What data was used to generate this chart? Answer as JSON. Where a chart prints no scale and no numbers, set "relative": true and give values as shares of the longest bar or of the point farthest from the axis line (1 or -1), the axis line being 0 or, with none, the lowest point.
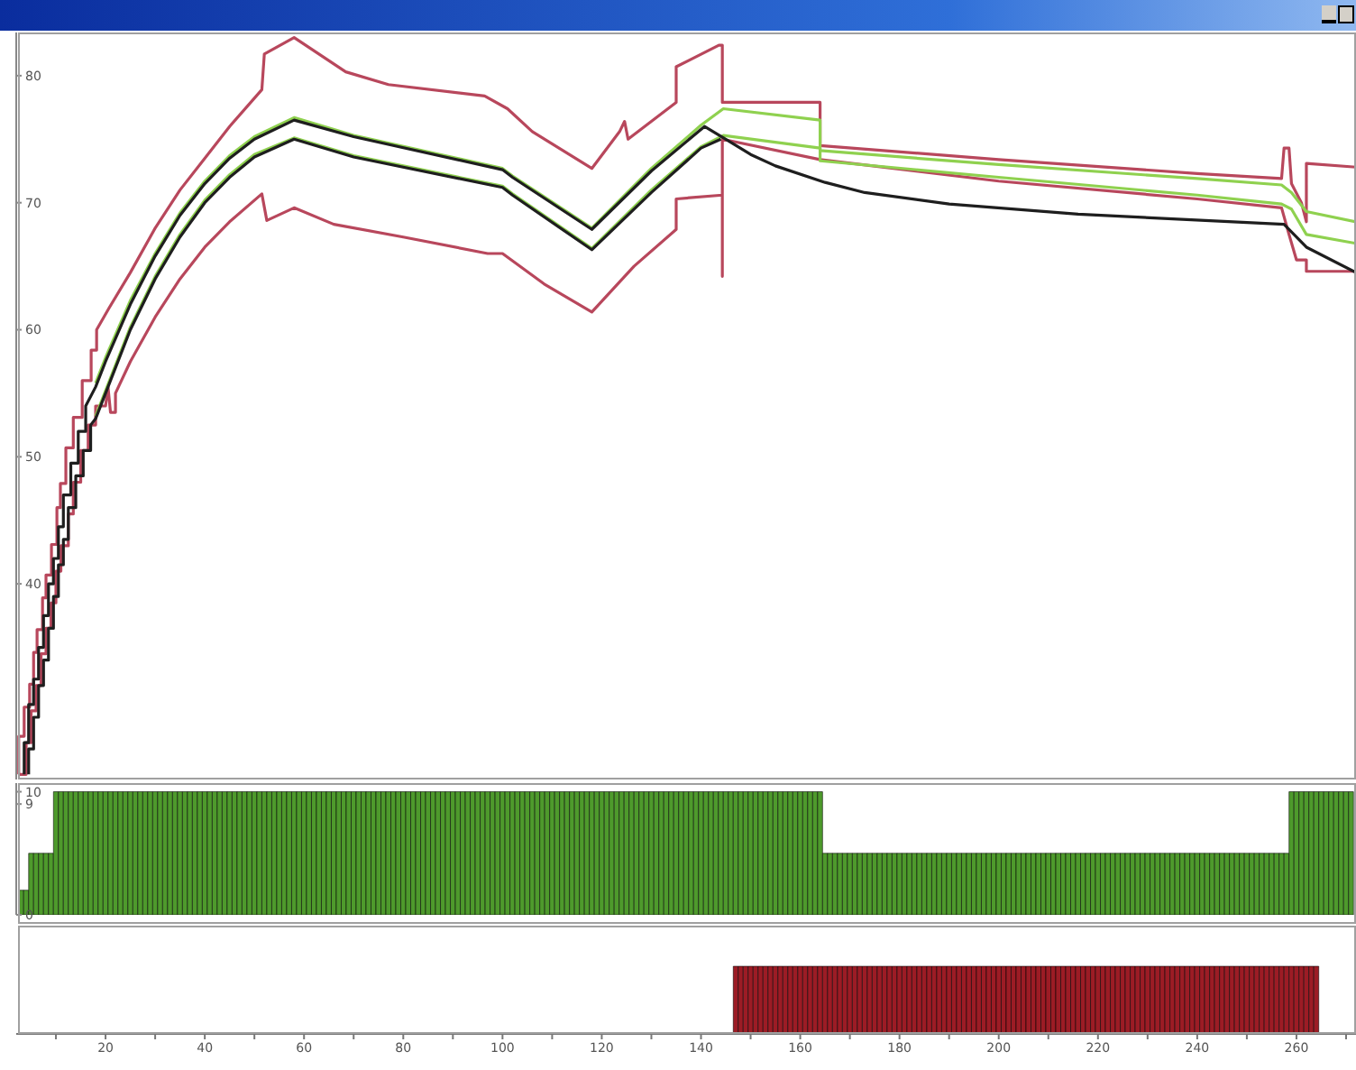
{
  "chart_data": [
    {
      "type": "line",
      "xlim": [
        2,
        272
      ],
      "ylim": [
        24.6,
        83.4
      ],
      "yticks": [
        40,
        50,
        60,
        70,
        80
      ],
      "tick_labels": "y",
      "marker": "none",
      "line_style": "solid",
      "series": [
        {
          "color": "#b8475c",
          "x": [
            2.5,
            2.5,
            3.6,
            3.6,
            4.7,
            4.7,
            5.5,
            5.5,
            6.2,
            6.2,
            7.3,
            7.3,
            8,
            8,
            9.1,
            9.1,
            10.2,
            10.2,
            10.9,
            10.9,
            12,
            12,
            13.5,
            13.5,
            15.3,
            15.3,
            17.1,
            17.1,
            18.2,
            18.2,
            20.7,
            25,
            30,
            35,
            40,
            45,
            51.5,
            52,
            58,
            68.4,
            77,
            96.4,
            101,
            106,
            118,
            123.6,
            124.6,
            125.3,
            135,
            135,
            143.6,
            144.3,
            144.3,
            164,
            164,
            200,
            240,
            257,
            257.5,
            258.5,
            259,
            261,
            262,
            262,
            272
          ],
          "values": [
            25,
            28,
            28,
            30.3,
            30.3,
            32.1,
            32.1,
            34.6,
            34.6,
            36.4,
            36.4,
            38.9,
            38.9,
            40.7,
            40.7,
            43.1,
            43.1,
            46,
            46,
            47.9,
            47.9,
            50.7,
            50.7,
            53.1,
            53.1,
            56,
            56,
            58.4,
            58.4,
            60,
            61.7,
            64.5,
            68,
            71,
            73.5,
            76,
            78.9,
            81.7,
            83,
            80.3,
            79.3,
            78.4,
            77.4,
            75.6,
            72.7,
            75.6,
            76.4,
            75,
            77.9,
            80.7,
            82.4,
            82.4,
            77.9,
            77.9,
            74.5,
            73.4,
            72.3,
            71.9,
            74.3,
            74.3,
            71.5,
            70,
            68.5,
            73.1,
            72.8
          ]
        },
        {
          "color": "#b8475c",
          "x": [
            2.5,
            4,
            4,
            5,
            5,
            6,
            6,
            7,
            7,
            8,
            8,
            9,
            9,
            10,
            10,
            11,
            11,
            12.5,
            12.5,
            13.5,
            13.5,
            15,
            15,
            16.5,
            16.5,
            18,
            18,
            20,
            20.5,
            21,
            22,
            22,
            25,
            30,
            35,
            40,
            45,
            51.5,
            52.5,
            58,
            66,
            80,
            97,
            100,
            108.4,
            118,
            126.5,
            135,
            135,
            144.3,
            144.3,
            144.3,
            164,
            200,
            240,
            257,
            258.5,
            260,
            262,
            262,
            272
          ],
          "values": [
            25,
            25,
            27.5,
            27.5,
            30,
            30,
            32,
            32,
            34.5,
            34.5,
            36.5,
            36.5,
            38.5,
            38.5,
            41,
            41,
            43,
            43,
            45.5,
            45.5,
            48,
            48,
            50.5,
            50.5,
            52.5,
            52.5,
            54,
            54,
            55.5,
            53.5,
            53.5,
            55,
            57.5,
            61,
            64,
            66.5,
            68.5,
            70.7,
            68.6,
            69.6,
            68.3,
            67.3,
            66,
            66,
            63.6,
            61.4,
            65,
            67.9,
            70.3,
            70.6,
            64.2,
            75,
            73.4,
            71.7,
            70.3,
            69.6,
            67.5,
            65.5,
            65.5,
            64.6,
            64.6
          ]
        },
        {
          "color": "#8fd14f",
          "x": [
            18,
            20,
            25,
            30,
            35,
            40,
            45,
            50,
            58,
            70,
            100,
            102,
            118,
            130,
            140,
            144.5,
            164,
            164,
            200,
            240,
            257,
            259,
            262,
            272
          ],
          "values": [
            55.8,
            57.8,
            62.3,
            66,
            69.2,
            71.7,
            73.7,
            75.2,
            76.7,
            75.3,
            72.7,
            72.1,
            68,
            72.7,
            76.1,
            77.4,
            76.5,
            74.1,
            73,
            71.9,
            71.4,
            70.8,
            69.3,
            68.5
          ]
        },
        {
          "color": "#8fd14f",
          "x": [
            18,
            20,
            25,
            30,
            35,
            40,
            45,
            50,
            58,
            70,
            100,
            102,
            118,
            130,
            140,
            144.5,
            164,
            164,
            200,
            240,
            257,
            259,
            262,
            272
          ],
          "values": [
            53.2,
            55.2,
            60.2,
            64.2,
            67.5,
            70.2,
            72.2,
            73.8,
            75.1,
            73.7,
            71.3,
            70.7,
            66.4,
            71,
            74.4,
            75.3,
            74.3,
            73.3,
            72,
            70.6,
            69.9,
            69.5,
            67.5,
            66.8
          ]
        },
        {
          "color": "#1e1e1e",
          "x": [
            3.6,
            3.6,
            4.5,
            4.5,
            5.5,
            5.5,
            6.5,
            6.5,
            7.5,
            7.5,
            8.5,
            8.5,
            9.5,
            9.5,
            10.5,
            10.5,
            11.5,
            11.5,
            13,
            13,
            14.5,
            14.5,
            16,
            16,
            18,
            20,
            25,
            30,
            35,
            40,
            45,
            50,
            58,
            70,
            100,
            102,
            118,
            130,
            140.7,
            145,
            150,
            155,
            165,
            173,
            190,
            216,
            257.5,
            262,
            272
          ],
          "values": [
            25,
            27.5,
            27.5,
            30.5,
            30.5,
            32.5,
            32.5,
            35,
            35,
            37.5,
            37.5,
            40,
            40,
            42,
            42,
            44.5,
            44.5,
            47,
            47,
            49.5,
            49.5,
            52,
            52,
            54,
            55.5,
            57.5,
            62,
            65.8,
            69,
            71.5,
            73.5,
            75,
            76.5,
            75.2,
            72.6,
            72,
            67.9,
            72.5,
            76,
            75,
            73.8,
            72.9,
            71.6,
            70.8,
            69.9,
            69.1,
            68.3,
            66.5,
            64.5
          ]
        },
        {
          "color": "#1e1e1e",
          "x": [
            4.5,
            4.5,
            5.5,
            5.5,
            6.5,
            6.5,
            7.5,
            7.5,
            8.5,
            8.5,
            9.5,
            9.5,
            10.5,
            10.5,
            11.5,
            11.5,
            12.5,
            12.5,
            14,
            14,
            15.5,
            15.5,
            17,
            17,
            18,
            20,
            25,
            30,
            35,
            40,
            45,
            50,
            58,
            70,
            100,
            102,
            118,
            130,
            140,
            144
          ],
          "values": [
            25,
            27,
            27,
            29.5,
            29.5,
            32,
            32,
            34,
            34,
            36.5,
            36.5,
            39,
            39,
            41.5,
            41.5,
            43.5,
            43.5,
            46,
            46,
            48.5,
            48.5,
            50.5,
            50.5,
            52.5,
            53,
            55,
            60,
            64,
            67.3,
            70,
            72,
            73.6,
            75,
            73.6,
            71.2,
            70.6,
            66.3,
            70.8,
            74.3,
            75
          ]
        }
      ]
    },
    {
      "type": "bar",
      "xlim": [
        2,
        272
      ],
      "ylim": [
        0,
        10.7
      ],
      "yticks": [
        0,
        9,
        10
      ],
      "tick_labels": "y",
      "color": "#4e9a2c",
      "x": [
        3,
        4,
        5,
        6,
        7,
        8,
        9,
        10,
        11,
        12,
        13,
        14,
        15,
        16,
        17,
        18,
        19,
        20,
        21,
        22,
        23,
        24,
        25,
        26,
        27,
        28,
        29,
        30,
        31,
        32,
        33,
        34,
        35,
        36,
        37,
        38,
        39,
        40,
        41,
        42,
        43,
        44,
        45,
        46,
        47,
        48,
        49,
        50,
        51,
        52,
        53,
        54,
        55,
        56,
        57,
        58,
        59,
        60,
        61,
        62,
        63,
        64,
        65,
        66,
        67,
        68,
        69,
        70,
        71,
        72,
        73,
        74,
        75,
        76,
        77,
        78,
        79,
        80,
        81,
        82,
        83,
        84,
        85,
        86,
        87,
        88,
        89,
        90,
        91,
        92,
        93,
        94,
        95,
        96,
        97,
        98,
        99,
        100,
        101,
        102,
        103,
        104,
        105,
        106,
        107,
        108,
        109,
        110,
        111,
        112,
        113,
        114,
        115,
        116,
        117,
        118,
        119,
        120,
        121,
        122,
        123,
        124,
        125,
        126,
        127,
        128,
        129,
        130,
        131,
        132,
        133,
        134,
        135,
        136,
        137,
        138,
        139,
        140,
        141,
        142,
        143,
        144,
        145,
        146,
        147,
        148,
        149,
        150,
        151,
        152,
        153,
        154,
        155,
        156,
        157,
        158,
        159,
        160,
        161,
        162,
        163,
        164,
        165,
        166,
        167,
        168,
        169,
        170,
        171,
        172,
        173,
        174,
        175,
        176,
        177,
        178,
        179,
        180,
        181,
        182,
        183,
        184,
        185,
        186,
        187,
        188,
        189,
        190,
        191,
        192,
        193,
        194,
        195,
        196,
        197,
        198,
        199,
        200,
        201,
        202,
        203,
        204,
        205,
        206,
        207,
        208,
        209,
        210,
        211,
        212,
        213,
        214,
        215,
        216,
        217,
        218,
        219,
        220,
        221,
        222,
        223,
        224,
        225,
        226,
        227,
        228,
        229,
        230,
        231,
        232,
        233,
        234,
        235,
        236,
        237,
        238,
        239,
        240,
        241,
        242,
        243,
        244,
        245,
        246,
        247,
        248,
        249,
        250,
        251,
        252,
        253,
        254,
        255,
        256,
        257,
        258,
        259,
        260,
        261,
        262,
        263,
        264,
        265,
        266,
        267,
        268,
        269,
        270,
        271
      ],
      "values": [
        2,
        2,
        5,
        5,
        5,
        5,
        5,
        10,
        10,
        10,
        10,
        10,
        10,
        10,
        10,
        10,
        10,
        10,
        10,
        10,
        10,
        10,
        10,
        10,
        10,
        10,
        10,
        10,
        10,
        10,
        10,
        10,
        10,
        10,
        10,
        10,
        10,
        10,
        10,
        10,
        10,
        10,
        10,
        10,
        10,
        10,
        10,
        10,
        10,
        10,
        10,
        10,
        10,
        10,
        10,
        10,
        10,
        10,
        10,
        10,
        10,
        10,
        10,
        10,
        10,
        10,
        10,
        10,
        10,
        10,
        10,
        10,
        10,
        10,
        10,
        10,
        10,
        10,
        10,
        10,
        10,
        10,
        10,
        10,
        10,
        10,
        10,
        10,
        10,
        10,
        10,
        10,
        10,
        10,
        10,
        10,
        10,
        10,
        10,
        10,
        10,
        10,
        10,
        10,
        10,
        10,
        10,
        10,
        10,
        10,
        10,
        10,
        10,
        10,
        10,
        10,
        10,
        10,
        10,
        10,
        10,
        10,
        10,
        10,
        10,
        10,
        10,
        10,
        10,
        10,
        10,
        10,
        10,
        10,
        10,
        10,
        10,
        10,
        10,
        10,
        10,
        10,
        10,
        10,
        10,
        10,
        10,
        10,
        10,
        10,
        10,
        10,
        10,
        10,
        10,
        10,
        10,
        10,
        10,
        10,
        10,
        10,
        5,
        5,
        5,
        5,
        5,
        5,
        5,
        5,
        5,
        5,
        5,
        5,
        5,
        5,
        5,
        5,
        5,
        5,
        5,
        5,
        5,
        5,
        5,
        5,
        5,
        5,
        5,
        5,
        5,
        5,
        5,
        5,
        5,
        5,
        5,
        5,
        5,
        5,
        5,
        5,
        5,
        5,
        5,
        5,
        5,
        5,
        5,
        5,
        5,
        5,
        5,
        5,
        5,
        5,
        5,
        5,
        5,
        5,
        5,
        5,
        5,
        5,
        5,
        5,
        5,
        5,
        5,
        5,
        5,
        5,
        5,
        5,
        5,
        5,
        5,
        5,
        5,
        5,
        5,
        5,
        5,
        5,
        5,
        5,
        5,
        5,
        5,
        5,
        5,
        5,
        5,
        5,
        5,
        5,
        10,
        10,
        10,
        10,
        10,
        10,
        10,
        10,
        10,
        10,
        10,
        10,
        10
      ]
    },
    {
      "type": "bar",
      "relative": true,
      "xlim": [
        2,
        272
      ],
      "xticks": [
        {
          "value": 10,
          "label": null
        },
        20,
        {
          "value": 30,
          "label": null
        },
        40,
        {
          "value": 50,
          "label": null
        },
        60,
        {
          "value": 70,
          "label": null
        },
        80,
        {
          "value": 90,
          "label": null
        },
        100,
        {
          "value": 110,
          "label": null
        },
        120,
        {
          "value": 130,
          "label": null
        },
        140,
        {
          "value": 150,
          "label": null
        },
        160,
        {
          "value": 170,
          "label": null
        },
        180,
        {
          "value": 190,
          "label": null
        },
        200,
        {
          "value": 210,
          "label": null
        },
        220,
        {
          "value": 230,
          "label": null
        },
        240,
        {
          "value": 250,
          "label": null
        },
        260,
        {
          "value": 270,
          "label": null
        }
      ],
      "tick_labels": "x",
      "color": "#9c1c25",
      "x": [
        147,
        148,
        149,
        150,
        151,
        152,
        153,
        154,
        155,
        156,
        157,
        158,
        159,
        160,
        161,
        162,
        163,
        164,
        165,
        166,
        167,
        168,
        169,
        170,
        171,
        172,
        173,
        174,
        175,
        176,
        177,
        178,
        179,
        180,
        181,
        182,
        183,
        184,
        185,
        186,
        187,
        188,
        189,
        190,
        191,
        192,
        193,
        194,
        195,
        196,
        197,
        198,
        199,
        200,
        201,
        202,
        203,
        204,
        205,
        206,
        207,
        208,
        209,
        210,
        211,
        212,
        213,
        214,
        215,
        216,
        217,
        218,
        219,
        220,
        221,
        222,
        223,
        224,
        225,
        226,
        227,
        228,
        229,
        230,
        231,
        232,
        233,
        234,
        235,
        236,
        237,
        238,
        239,
        240,
        241,
        242,
        243,
        244,
        245,
        246,
        247,
        248,
        249,
        250,
        251,
        252,
        253,
        254,
        255,
        256,
        257,
        258,
        259,
        260,
        261,
        262,
        263,
        264
      ],
      "values": [
        1,
        1,
        1,
        1,
        1,
        1,
        1,
        1,
        1,
        1,
        1,
        1,
        1,
        1,
        1,
        1,
        1,
        1,
        1,
        1,
        1,
        1,
        1,
        1,
        1,
        1,
        1,
        1,
        1,
        1,
        1,
        1,
        1,
        1,
        1,
        1,
        1,
        1,
        1,
        1,
        1,
        1,
        1,
        1,
        1,
        1,
        1,
        1,
        1,
        1,
        1,
        1,
        1,
        1,
        1,
        1,
        1,
        1,
        1,
        1,
        1,
        1,
        1,
        1,
        1,
        1,
        1,
        1,
        1,
        1,
        1,
        1,
        1,
        1,
        1,
        1,
        1,
        1,
        1,
        1,
        1,
        1,
        1,
        1,
        1,
        1,
        1,
        1,
        1,
        1,
        1,
        1,
        1,
        1,
        1,
        1,
        1,
        1,
        1,
        1,
        1,
        1,
        1,
        1,
        1,
        1,
        1,
        1,
        1,
        1,
        1,
        1,
        1,
        1,
        1,
        1,
        1,
        1
      ]
    }
  ]
}
